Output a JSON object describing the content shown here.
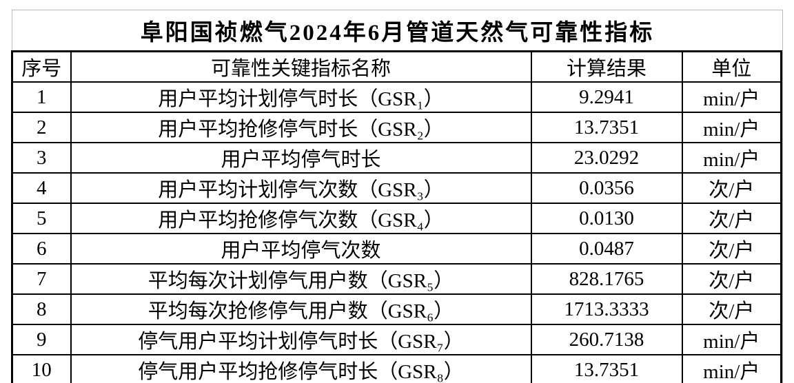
{
  "title": "阜阳国祯燃气2024年6月管道天然气可靠性指标",
  "colors": {
    "background": "#ffffff",
    "grid_border": "#000000",
    "title_frame_border": "#b9b9b9",
    "text": "#000000"
  },
  "table": {
    "headers": {
      "no": "序号",
      "name": "可靠性关键指标名称",
      "result": "计算结果",
      "unit": "单位"
    },
    "rows": [
      {
        "no": "1",
        "name": "用户平均计划停气时长（GSR₁）",
        "result": "9.2941",
        "unit": "min/户"
      },
      {
        "no": "2",
        "name": "用户平均抢修停气时长（GSR₂）",
        "result": "13.7351",
        "unit": "min/户"
      },
      {
        "no": "3",
        "name": "用户平均停气时长",
        "result": "23.0292",
        "unit": "min/户"
      },
      {
        "no": "4",
        "name": "用户平均计划停气次数（GSR₃）",
        "result": "0.0356",
        "unit": "次/户"
      },
      {
        "no": "5",
        "name": "用户平均抢修停气次数（GSR₄）",
        "result": "0.0130",
        "unit": "次/户"
      },
      {
        "no": "6",
        "name": "用户平均停气次数",
        "result": "0.0487",
        "unit": "次/户"
      },
      {
        "no": "7",
        "name": "平均每次计划停气用户数（GSR₅）",
        "result": "828.1765",
        "unit": "次/户"
      },
      {
        "no": "8",
        "name": "平均每次抢修停气用户数（GSR₆）",
        "result": "1713.3333",
        "unit": "次/户"
      },
      {
        "no": "9",
        "name": "停气用户平均计划停气时长（GSR₇）",
        "result": "260.7138",
        "unit": "min/户"
      },
      {
        "no": "10",
        "name": "停气用户平均抢修停气时长（GSR₈）",
        "result": "13.7351",
        "unit": "min/户"
      }
    ]
  }
}
